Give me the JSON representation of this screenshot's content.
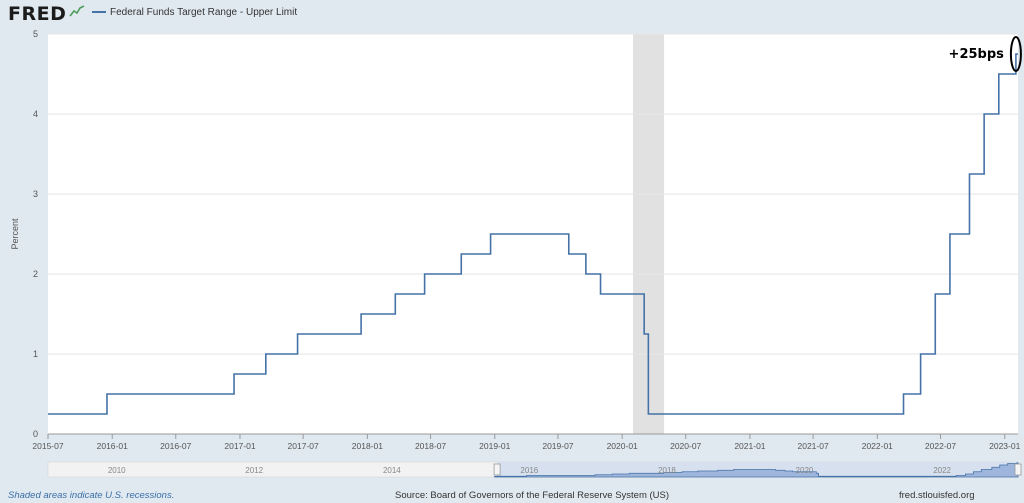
{
  "header": {
    "logo": "FRED",
    "legend": "Federal Funds Target Range - Upper Limit"
  },
  "footer": {
    "note": "Shaded areas indicate U.S. recessions.",
    "source": "Source: Board of Governors of the Federal Reserve System (US)",
    "site": "fred.stlouisfed.org"
  },
  "colors": {
    "line": "#4572a7",
    "recession": "#e1e1e1",
    "grid": "#e6e6e6",
    "navigator_fill": "#9fb6dc"
  },
  "chart_data": {
    "type": "line",
    "step": true,
    "ylabel": "Percent",
    "ylim": [
      0,
      5
    ],
    "yticks": [
      "0",
      "1",
      "2",
      "3",
      "4",
      "5"
    ],
    "xlim": [
      "2015-07-01",
      "2023-02-08"
    ],
    "xticks": [
      "2015-07",
      "2016-01",
      "2016-07",
      "2017-01",
      "2017-07",
      "2018-01",
      "2018-07",
      "2019-01",
      "2019-07",
      "2020-01",
      "2020-07",
      "2021-01",
      "2021-07",
      "2022-01",
      "2022-07",
      "2023-01"
    ],
    "recessions": [
      [
        "2020-02-01",
        "2020-04-30"
      ]
    ],
    "series": [
      {
        "name": "Federal Funds Target Range - Upper Limit",
        "points": [
          [
            "2015-07-01",
            0.25
          ],
          [
            "2015-12-17",
            0.5
          ],
          [
            "2016-12-15",
            0.75
          ],
          [
            "2017-03-16",
            1.0
          ],
          [
            "2017-06-15",
            1.25
          ],
          [
            "2017-12-14",
            1.5
          ],
          [
            "2018-03-22",
            1.75
          ],
          [
            "2018-06-14",
            2.0
          ],
          [
            "2018-09-27",
            2.25
          ],
          [
            "2018-12-20",
            2.5
          ],
          [
            "2019-08-01",
            2.25
          ],
          [
            "2019-09-19",
            2.0
          ],
          [
            "2019-10-31",
            1.75
          ],
          [
            "2020-03-04",
            1.25
          ],
          [
            "2020-03-16",
            0.25
          ],
          [
            "2022-03-17",
            0.5
          ],
          [
            "2022-05-05",
            1.0
          ],
          [
            "2022-06-16",
            1.75
          ],
          [
            "2022-07-28",
            2.5
          ],
          [
            "2022-09-22",
            3.25
          ],
          [
            "2022-11-03",
            4.0
          ],
          [
            "2022-12-15",
            4.5
          ],
          [
            "2023-02-02",
            4.75
          ],
          [
            "2023-02-08",
            4.75
          ]
        ]
      }
    ],
    "annotations": [
      {
        "text": "+25bps",
        "x": "2023-02-02",
        "y": 4.75
      }
    ],
    "navigator": {
      "labels": [
        "2010",
        "2012",
        "2014",
        "2016",
        "2018",
        "2020",
        "2022"
      ]
    }
  }
}
